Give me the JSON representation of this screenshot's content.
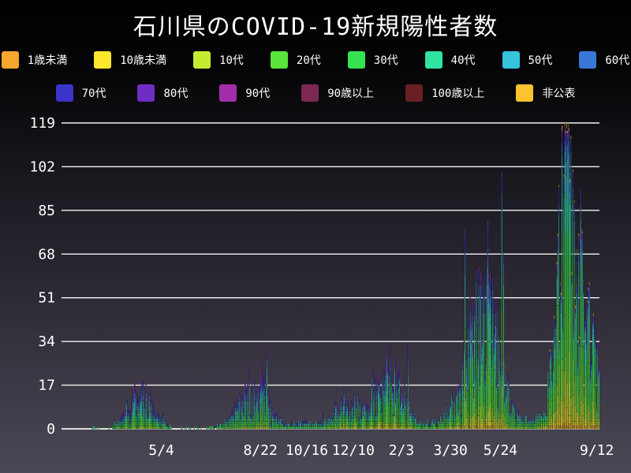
{
  "title": "石川県のCOVID-19新規陽性者数",
  "colors": {
    "background_top": "#000000",
    "background_bottom": "#4b4754",
    "grid": "#ffffff",
    "text": "#ffffff"
  },
  "legend": {
    "row_break": 8,
    "items": [
      {
        "label": "1歳未満",
        "color": "#f7a72e"
      },
      {
        "label": "10歳未満",
        "color": "#ffe72b"
      },
      {
        "label": "10代",
        "color": "#c3ed30"
      },
      {
        "label": "20代",
        "color": "#57e639"
      },
      {
        "label": "30代",
        "color": "#35e252"
      },
      {
        "label": "40代",
        "color": "#30e3a0"
      },
      {
        "label": "50代",
        "color": "#35c4da"
      },
      {
        "label": "60代",
        "color": "#3877d8"
      },
      {
        "label": "70代",
        "color": "#3c33c9"
      },
      {
        "label": "80代",
        "color": "#6f2dc3"
      },
      {
        "label": "90代",
        "color": "#a42dab"
      },
      {
        "label": "90歳以上",
        "color": "#7d2754"
      },
      {
        "label": "100歳以上",
        "color": "#682023"
      },
      {
        "label": "非公表",
        "color": "#fbc32e"
      }
    ]
  },
  "chart_data": {
    "type": "bar",
    "stacked": true,
    "title": "石川県のCOVID-19新規陽性者数",
    "xlabel": "",
    "ylabel": "",
    "ylim": [
      0,
      119
    ],
    "yticks": [
      0,
      17,
      34,
      51,
      68,
      85,
      102,
      119
    ],
    "grid": "horizontal-white-lines",
    "legend_position": "top",
    "bar_unit": "persons per day",
    "x_range_days": 614,
    "xticks": [
      {
        "label": "5/4",
        "day": 114
      },
      {
        "label": "8/22",
        "day": 227
      },
      {
        "label": "10/16",
        "day": 280
      },
      {
        "label": "12/10",
        "day": 333
      },
      {
        "label": "2/3",
        "day": 388
      },
      {
        "label": "3/30",
        "day": 444
      },
      {
        "label": "5/24",
        "day": 501
      },
      {
        "label": "9/12",
        "day": 611
      }
    ],
    "series": [
      {
        "name": "1歳未満",
        "color": "#f7a72e"
      },
      {
        "name": "10歳未満",
        "color": "#ffe72b"
      },
      {
        "name": "10代",
        "color": "#c3ed30"
      },
      {
        "name": "20代",
        "color": "#57e639"
      },
      {
        "name": "30代",
        "color": "#35e252"
      },
      {
        "name": "40代",
        "color": "#30e3a0"
      },
      {
        "name": "50代",
        "color": "#35c4da"
      },
      {
        "name": "60代",
        "color": "#3877d8"
      },
      {
        "name": "70代",
        "color": "#3c33c9"
      },
      {
        "name": "80代",
        "color": "#6f2dc3"
      },
      {
        "name": "90代",
        "color": "#a42dab"
      },
      {
        "name": "90歳以上",
        "color": "#7d2754"
      },
      {
        "name": "100歳以上",
        "color": "#682023"
      },
      {
        "name": "非公表",
        "color": "#fbc32e"
      }
    ],
    "weekly_totals_approx": [
      [
        0,
        0
      ],
      [
        14,
        0
      ],
      [
        28,
        0
      ],
      [
        38,
        1
      ],
      [
        45,
        1
      ],
      [
        52,
        0
      ],
      [
        60,
        2
      ],
      [
        66,
        3
      ],
      [
        73,
        6
      ],
      [
        80,
        11
      ],
      [
        87,
        15
      ],
      [
        93,
        17
      ],
      [
        100,
        11
      ],
      [
        107,
        6
      ],
      [
        114,
        4
      ],
      [
        121,
        2
      ],
      [
        128,
        1
      ],
      [
        140,
        1
      ],
      [
        154,
        1
      ],
      [
        168,
        1
      ],
      [
        182,
        2
      ],
      [
        189,
        3
      ],
      [
        196,
        6
      ],
      [
        203,
        11
      ],
      [
        210,
        16
      ],
      [
        217,
        13
      ],
      [
        224,
        16
      ],
      [
        231,
        17
      ],
      [
        238,
        9
      ],
      [
        245,
        5
      ],
      [
        252,
        3
      ],
      [
        259,
        2
      ],
      [
        273,
        2
      ],
      [
        280,
        3
      ],
      [
        287,
        2
      ],
      [
        294,
        3
      ],
      [
        301,
        3
      ],
      [
        308,
        5
      ],
      [
        315,
        8
      ],
      [
        322,
        11
      ],
      [
        329,
        8
      ],
      [
        336,
        10
      ],
      [
        343,
        8
      ],
      [
        350,
        12
      ],
      [
        357,
        15
      ],
      [
        364,
        19
      ],
      [
        371,
        24
      ],
      [
        378,
        19
      ],
      [
        385,
        21
      ],
      [
        392,
        12
      ],
      [
        399,
        7
      ],
      [
        406,
        4
      ],
      [
        413,
        2
      ],
      [
        420,
        3
      ],
      [
        427,
        3
      ],
      [
        434,
        4
      ],
      [
        441,
        6
      ],
      [
        448,
        9
      ],
      [
        455,
        15
      ],
      [
        462,
        26
      ],
      [
        469,
        42
      ],
      [
        476,
        46
      ],
      [
        483,
        44
      ],
      [
        490,
        52
      ],
      [
        497,
        40
      ],
      [
        504,
        28
      ],
      [
        511,
        13
      ],
      [
        518,
        6
      ],
      [
        525,
        4
      ],
      [
        532,
        4
      ],
      [
        539,
        4
      ],
      [
        546,
        6
      ],
      [
        553,
        11
      ],
      [
        560,
        30
      ],
      [
        567,
        62
      ],
      [
        574,
        85
      ],
      [
        581,
        86
      ],
      [
        588,
        70
      ],
      [
        595,
        50
      ],
      [
        602,
        38
      ],
      [
        609,
        28
      ],
      [
        613,
        26
      ]
    ],
    "peak_days_approx": [
      [
        93,
        19
      ],
      [
        228,
        26
      ],
      [
        234,
        31
      ],
      [
        372,
        29
      ],
      [
        395,
        33
      ],
      [
        460,
        78
      ],
      [
        486,
        81
      ],
      [
        502,
        100
      ],
      [
        504,
        68
      ],
      [
        567,
        95
      ],
      [
        571,
        118
      ],
      [
        575,
        116
      ],
      [
        580,
        97
      ],
      [
        585,
        89
      ],
      [
        590,
        76
      ],
      [
        607,
        45
      ],
      [
        611,
        33
      ]
    ],
    "age_mix_by_period": [
      {
        "from": 0,
        "to": 300,
        "shares": [
          0.005,
          0.02,
          0.04,
          0.17,
          0.14,
          0.14,
          0.13,
          0.12,
          0.1,
          0.08,
          0.04,
          0.008,
          0.002,
          0.005
        ]
      },
      {
        "from": 300,
        "to": 430,
        "shares": [
          0.01,
          0.04,
          0.07,
          0.19,
          0.15,
          0.14,
          0.12,
          0.1,
          0.08,
          0.06,
          0.03,
          0.005,
          0.0,
          0.005
        ]
      },
      {
        "from": 430,
        "to": 540,
        "shares": [
          0.01,
          0.04,
          0.08,
          0.24,
          0.18,
          0.15,
          0.12,
          0.08,
          0.05,
          0.03,
          0.012,
          0.004,
          0.001,
          0.003
        ]
      },
      {
        "from": 540,
        "to": 614,
        "shares": [
          0.015,
          0.06,
          0.12,
          0.25,
          0.2,
          0.15,
          0.09,
          0.05,
          0.03,
          0.015,
          0.006,
          0.002,
          0.001,
          0.011
        ]
      }
    ]
  }
}
